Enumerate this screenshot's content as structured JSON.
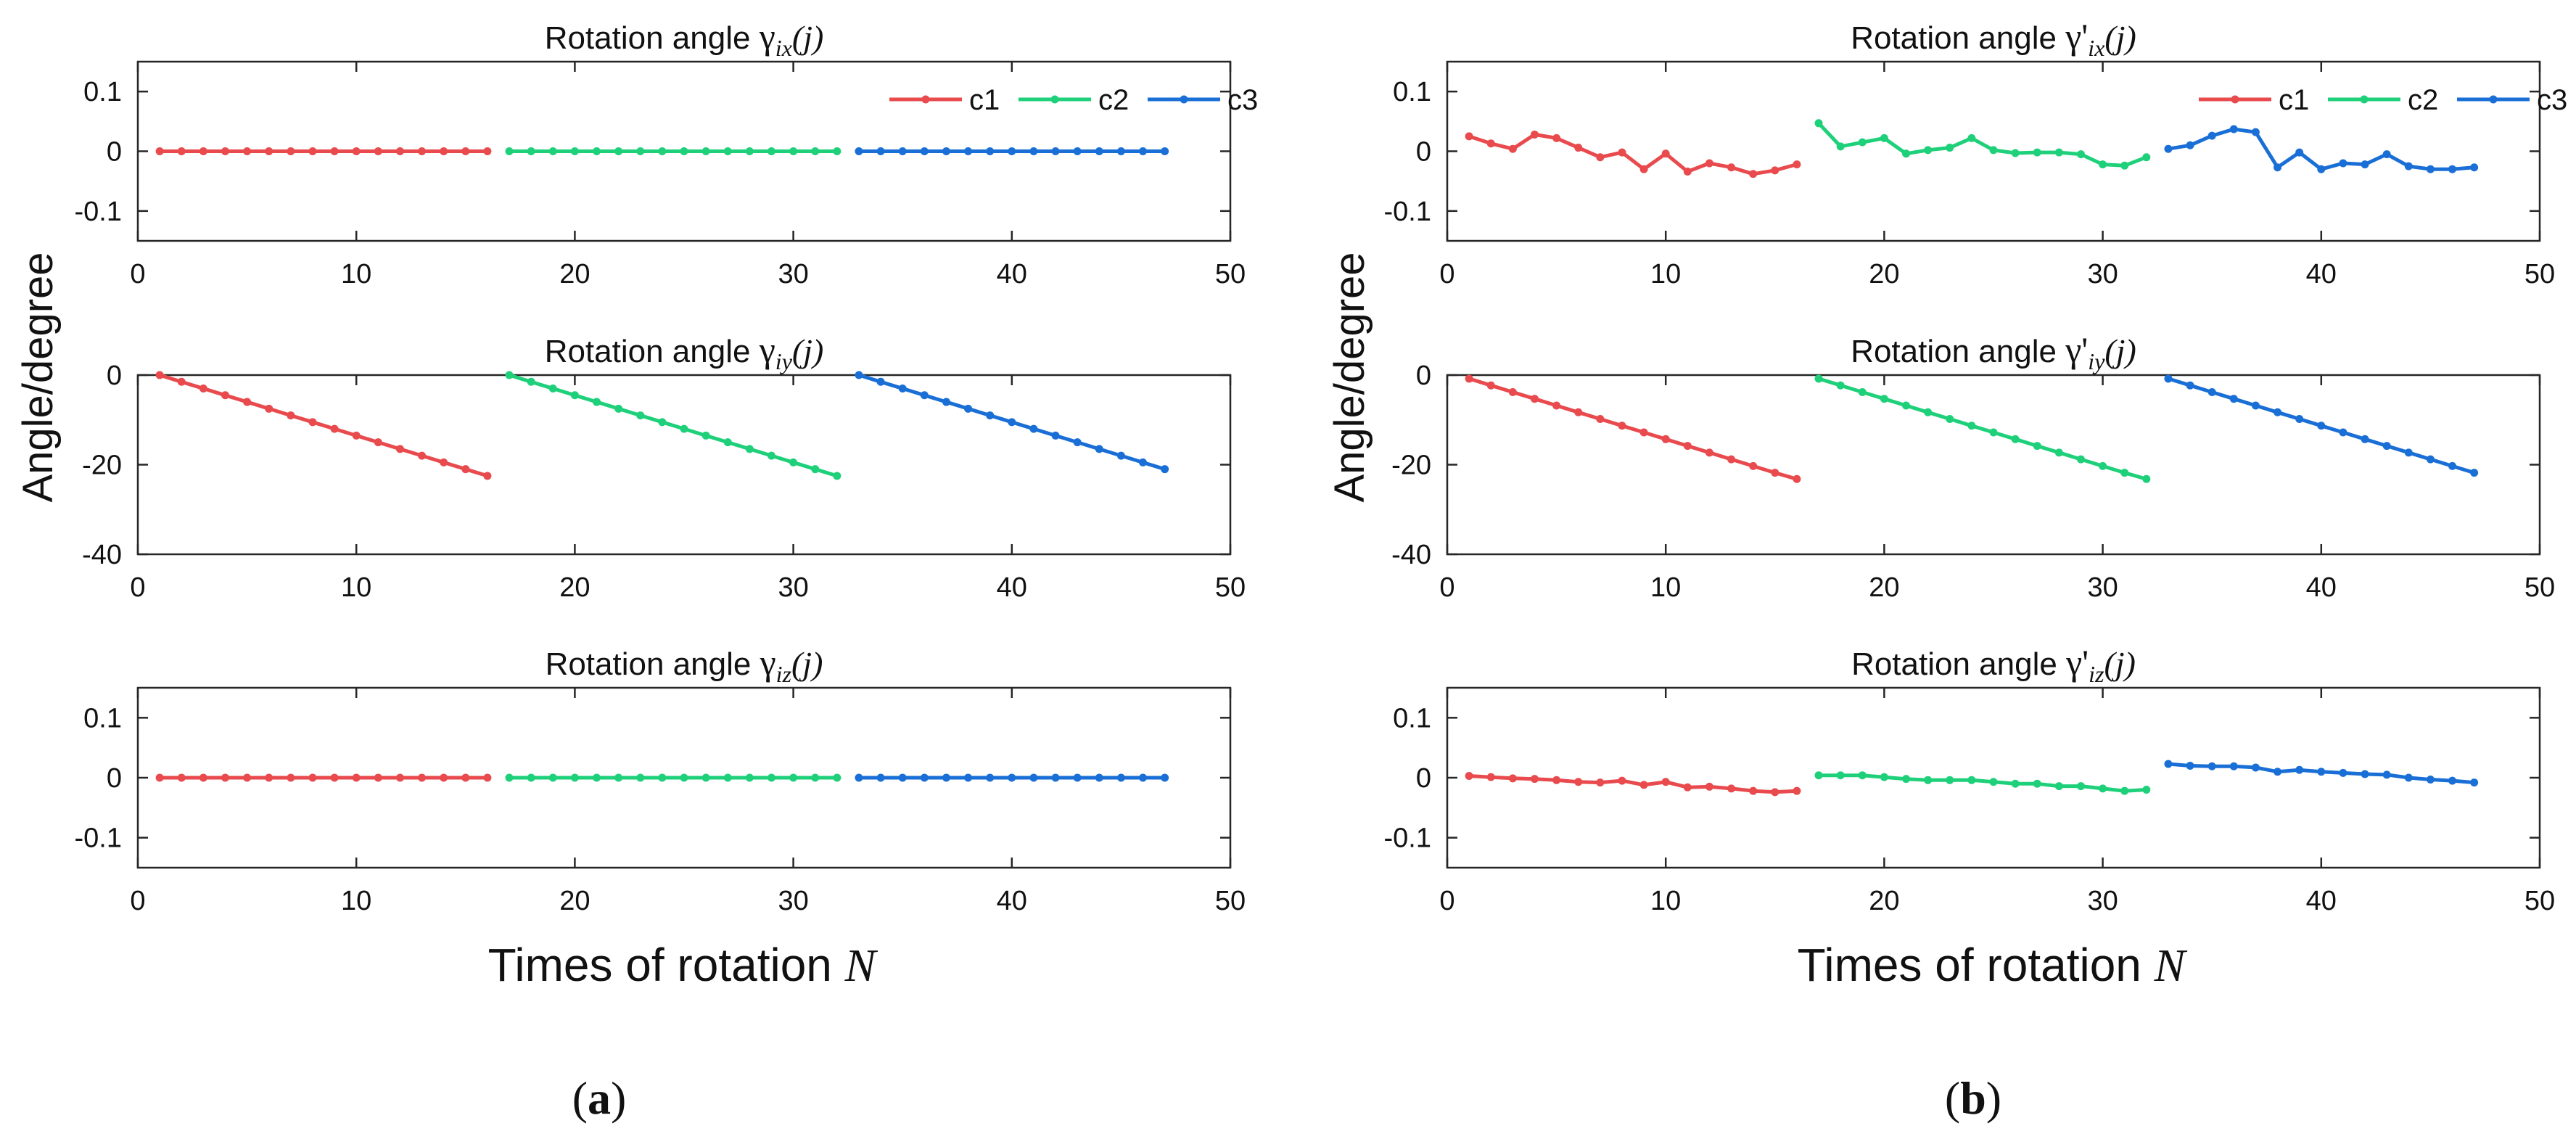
{
  "figure": {
    "panel_labels": [
      {
        "open": "(",
        "letter": "a",
        "close": ")"
      },
      {
        "open": "(",
        "letter": "b",
        "close": ")"
      }
    ],
    "ylabel": "Angle/degree",
    "xlabel_text": "Times of rotation",
    "xlabel_var": "N"
  },
  "colors": {
    "c1": "#e84a4d",
    "c2": "#1fd07a",
    "c3": "#1a6fd6"
  },
  "chart_data": [
    {
      "id": "a-x",
      "type": "line",
      "title_prefix": "Rotation angle",
      "title_symbol": "γ",
      "title_sub": "ix",
      "title_suffix": "(j)",
      "xlim": [
        0,
        50
      ],
      "ylim": [
        -0.15,
        0.15
      ],
      "xticks": [
        0,
        10,
        20,
        30,
        40,
        50
      ],
      "yticks": [
        0.1,
        0,
        -0.1
      ],
      "ytick_labels": [
        "0.1",
        "0",
        "-0.1"
      ],
      "legend": true,
      "series": [
        {
          "name": "c1",
          "x": [
            1,
            2,
            3,
            4,
            5,
            6,
            7,
            8,
            9,
            10,
            11,
            12,
            13,
            14,
            15,
            16
          ],
          "y": [
            0,
            0,
            0,
            0,
            0,
            0,
            0,
            0,
            0,
            0,
            0,
            0,
            0,
            0,
            0,
            0
          ]
        },
        {
          "name": "c2",
          "x": [
            17,
            18,
            19,
            20,
            21,
            22,
            23,
            24,
            25,
            26,
            27,
            28,
            29,
            30,
            31,
            32
          ],
          "y": [
            0,
            0,
            0,
            0,
            0,
            0,
            0,
            0,
            0,
            0,
            0,
            0,
            0,
            0,
            0,
            0
          ]
        },
        {
          "name": "c3",
          "x": [
            33,
            34,
            35,
            36,
            37,
            38,
            39,
            40,
            41,
            42,
            43,
            44,
            45,
            46,
            47
          ],
          "y": [
            0,
            0,
            0,
            0,
            0,
            0,
            0,
            0,
            0,
            0,
            0,
            0,
            0,
            0,
            0
          ]
        }
      ]
    },
    {
      "id": "a-y",
      "type": "line",
      "title_prefix": "Rotation angle",
      "title_symbol": "γ",
      "title_sub": "iy",
      "title_suffix": "(j)",
      "xlim": [
        0,
        50
      ],
      "ylim": [
        -40,
        0
      ],
      "xticks": [
        0,
        10,
        20,
        30,
        40,
        50
      ],
      "yticks": [
        0,
        -20,
        -40
      ],
      "ytick_labels": [
        "0",
        "-20",
        "-40"
      ],
      "legend": false,
      "series": [
        {
          "name": "c1",
          "x": [
            1,
            2,
            3,
            4,
            5,
            6,
            7,
            8,
            9,
            10,
            11,
            12,
            13,
            14,
            15,
            16
          ],
          "y": [
            0,
            -1.5,
            -3,
            -4.5,
            -6,
            -7.5,
            -9,
            -10.5,
            -12,
            -13.5,
            -15,
            -16.5,
            -18,
            -19.5,
            -21,
            -22.5
          ]
        },
        {
          "name": "c2",
          "x": [
            17,
            18,
            19,
            20,
            21,
            22,
            23,
            24,
            25,
            26,
            27,
            28,
            29,
            30,
            31,
            32
          ],
          "y": [
            0,
            -1.5,
            -3,
            -4.5,
            -6,
            -7.5,
            -9,
            -10.5,
            -12,
            -13.5,
            -15,
            -16.5,
            -18,
            -19.5,
            -21,
            -22.5
          ]
        },
        {
          "name": "c3",
          "x": [
            33,
            34,
            35,
            36,
            37,
            38,
            39,
            40,
            41,
            42,
            43,
            44,
            45,
            46,
            47
          ],
          "y": [
            0,
            -1.5,
            -3,
            -4.5,
            -6,
            -7.5,
            -9,
            -10.5,
            -12,
            -13.5,
            -15,
            -16.5,
            -18,
            -19.5,
            -21
          ]
        }
      ]
    },
    {
      "id": "a-z",
      "type": "line",
      "title_prefix": "Rotation angle",
      "title_symbol": "γ",
      "title_sub": "iz",
      "title_suffix": "(j)",
      "xlim": [
        0,
        50
      ],
      "ylim": [
        -0.15,
        0.15
      ],
      "xticks": [
        0,
        10,
        20,
        30,
        40,
        50
      ],
      "yticks": [
        0.1,
        0,
        -0.1
      ],
      "ytick_labels": [
        "0.1",
        "0",
        "-0.1"
      ],
      "legend": false,
      "series": [
        {
          "name": "c1",
          "x": [
            1,
            2,
            3,
            4,
            5,
            6,
            7,
            8,
            9,
            10,
            11,
            12,
            13,
            14,
            15,
            16
          ],
          "y": [
            0,
            0,
            0,
            0,
            0,
            0,
            0,
            0,
            0,
            0,
            0,
            0,
            0,
            0,
            0,
            0
          ]
        },
        {
          "name": "c2",
          "x": [
            17,
            18,
            19,
            20,
            21,
            22,
            23,
            24,
            25,
            26,
            27,
            28,
            29,
            30,
            31,
            32
          ],
          "y": [
            0,
            0,
            0,
            0,
            0,
            0,
            0,
            0,
            0,
            0,
            0,
            0,
            0,
            0,
            0,
            0
          ]
        },
        {
          "name": "c3",
          "x": [
            33,
            34,
            35,
            36,
            37,
            38,
            39,
            40,
            41,
            42,
            43,
            44,
            45,
            46,
            47
          ],
          "y": [
            0,
            0,
            0,
            0,
            0,
            0,
            0,
            0,
            0,
            0,
            0,
            0,
            0,
            0,
            0
          ]
        }
      ]
    },
    {
      "id": "b-x",
      "type": "line",
      "title_prefix": "Rotation angle",
      "title_symbol": "γ'",
      "title_sub": "ix",
      "title_suffix": "(j)",
      "xlim": [
        0,
        50
      ],
      "ylim": [
        -0.15,
        0.15
      ],
      "xticks": [
        0,
        10,
        20,
        30,
        40,
        50
      ],
      "yticks": [
        0.1,
        0,
        -0.1
      ],
      "ytick_labels": [
        "0.1",
        "0",
        "-0.1"
      ],
      "legend": true,
      "series": [
        {
          "name": "c1",
          "x": [
            1,
            2,
            3,
            4,
            5,
            6,
            7,
            8,
            9,
            10,
            11,
            12,
            13,
            14,
            15,
            16
          ],
          "y": [
            0.025,
            0.013,
            0.004,
            0.028,
            0.022,
            0.006,
            -0.01,
            -0.002,
            -0.03,
            -0.004,
            -0.034,
            -0.02,
            -0.027,
            -0.038,
            -0.032,
            -0.022
          ]
        },
        {
          "name": "c2",
          "x": [
            17,
            18,
            19,
            20,
            21,
            22,
            23,
            24,
            25,
            26,
            27,
            28,
            29,
            30,
            31,
            32
          ],
          "y": [
            0.047,
            0.008,
            0.015,
            0.022,
            -0.004,
            0.002,
            0.006,
            0.022,
            0.002,
            -0.003,
            -0.002,
            -0.002,
            -0.005,
            -0.022,
            -0.024,
            -0.01
          ]
        },
        {
          "name": "c3",
          "x": [
            33,
            34,
            35,
            36,
            37,
            38,
            39,
            40,
            41,
            42,
            43,
            44,
            45,
            46,
            47
          ],
          "y": [
            0.004,
            0.01,
            0.026,
            0.037,
            0.032,
            -0.027,
            -0.002,
            -0.03,
            -0.02,
            -0.022,
            -0.005,
            -0.025,
            -0.03,
            -0.03,
            -0.027
          ]
        }
      ]
    },
    {
      "id": "b-y",
      "type": "line",
      "title_prefix": "Rotation angle",
      "title_symbol": "γ'",
      "title_sub": "iy",
      "title_suffix": "(j)",
      "xlim": [
        0,
        50
      ],
      "ylim": [
        -40,
        0
      ],
      "xticks": [
        0,
        10,
        20,
        30,
        40,
        50
      ],
      "yticks": [
        0,
        -20,
        -40
      ],
      "ytick_labels": [
        "0",
        "-20",
        "-40"
      ],
      "legend": false,
      "series": [
        {
          "name": "c1",
          "x": [
            1,
            2,
            3,
            4,
            5,
            6,
            7,
            8,
            9,
            10,
            11,
            12,
            13,
            14,
            15,
            16
          ],
          "y": [
            -0.8,
            -2.3,
            -3.8,
            -5.3,
            -6.8,
            -8.3,
            -9.8,
            -11.3,
            -12.8,
            -14.3,
            -15.8,
            -17.3,
            -18.8,
            -20.3,
            -21.8,
            -23.2
          ]
        },
        {
          "name": "c2",
          "x": [
            17,
            18,
            19,
            20,
            21,
            22,
            23,
            24,
            25,
            26,
            27,
            28,
            29,
            30,
            31,
            32
          ],
          "y": [
            -0.8,
            -2.3,
            -3.8,
            -5.3,
            -6.8,
            -8.3,
            -9.8,
            -11.3,
            -12.8,
            -14.3,
            -15.8,
            -17.3,
            -18.8,
            -20.3,
            -21.8,
            -23.2
          ]
        },
        {
          "name": "c3",
          "x": [
            33,
            34,
            35,
            36,
            37,
            38,
            39,
            40,
            41,
            42,
            43,
            44,
            45,
            46,
            47
          ],
          "y": [
            -0.8,
            -2.3,
            -3.8,
            -5.3,
            -6.8,
            -8.3,
            -9.8,
            -11.3,
            -12.8,
            -14.3,
            -15.8,
            -17.3,
            -18.8,
            -20.3,
            -21.8
          ]
        }
      ]
    },
    {
      "id": "b-z",
      "type": "line",
      "title_prefix": "Rotation angle",
      "title_symbol": "γ'",
      "title_sub": "iz",
      "title_suffix": "(j)",
      "xlim": [
        0,
        50
      ],
      "ylim": [
        -0.15,
        0.15
      ],
      "xticks": [
        0,
        10,
        20,
        30,
        40,
        50
      ],
      "yticks": [
        0.1,
        0,
        -0.1
      ],
      "ytick_labels": [
        "0.1",
        "0",
        "-0.1"
      ],
      "legend": false,
      "series": [
        {
          "name": "c1",
          "x": [
            1,
            2,
            3,
            4,
            5,
            6,
            7,
            8,
            9,
            10,
            11,
            12,
            13,
            14,
            15,
            16
          ],
          "y": [
            0.003,
            0.001,
            -0.001,
            -0.002,
            -0.004,
            -0.007,
            -0.008,
            -0.005,
            -0.012,
            -0.007,
            -0.016,
            -0.015,
            -0.018,
            -0.022,
            -0.024,
            -0.022
          ]
        },
        {
          "name": "c2",
          "x": [
            17,
            18,
            19,
            20,
            21,
            22,
            23,
            24,
            25,
            26,
            27,
            28,
            29,
            30,
            31,
            32
          ],
          "y": [
            0.004,
            0.004,
            0.004,
            0.001,
            -0.002,
            -0.004,
            -0.004,
            -0.004,
            -0.007,
            -0.01,
            -0.01,
            -0.014,
            -0.014,
            -0.018,
            -0.022,
            -0.02
          ]
        },
        {
          "name": "c3",
          "x": [
            33,
            34,
            35,
            36,
            37,
            38,
            39,
            40,
            41,
            42,
            43,
            44,
            45,
            46,
            47
          ],
          "y": [
            0.023,
            0.02,
            0.019,
            0.019,
            0.017,
            0.01,
            0.013,
            0.01,
            0.008,
            0.006,
            0.005,
            0,
            -0.003,
            -0.005,
            -0.008
          ]
        }
      ]
    }
  ]
}
